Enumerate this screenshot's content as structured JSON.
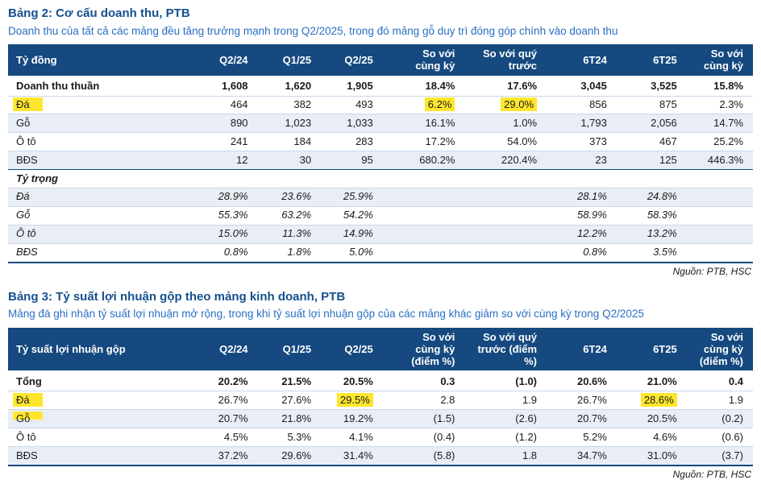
{
  "colors": {
    "header_bg": "#15497f",
    "header_text": "#ffffff",
    "band_row": "#e9eef6",
    "highlight": "#ffe62e",
    "title_blue": "#15508f",
    "subtitle_blue": "#2a6fc2",
    "body_text": "#1a1a1a"
  },
  "tables": [
    {
      "title": "Bảng 2: Cơ cấu doanh thu, PTB",
      "subtitle": "Doanh thu của tất cả các mảng đều tăng trưởng mạnh trong Q2/2025, trong đó mảng gỗ duy trì đóng góp chính vào doanh thu",
      "columns": [
        "Tỷ đồng",
        "Q2/24",
        "Q1/25",
        "Q2/25",
        "So với\ncùng kỳ",
        "So với quý\ntrước",
        "6T24",
        "6T25",
        "So với\ncùng kỳ"
      ],
      "rows": [
        {
          "label": "Doanh thu thuần",
          "bold": true,
          "values": [
            "1,608",
            "1,620",
            "1,905",
            "18.4%",
            "17.6%",
            "3,045",
            "3,525",
            "15.8%"
          ]
        },
        {
          "label": "Đá",
          "label_highlight": "full",
          "highlight_cells": [
            3,
            4
          ],
          "values": [
            "464",
            "382",
            "493",
            "6.2%",
            "29.0%",
            "856",
            "875",
            "2.3%"
          ]
        },
        {
          "label": "Gỗ",
          "shaded": true,
          "values": [
            "890",
            "1,023",
            "1,033",
            "16.1%",
            "1.0%",
            "1,793",
            "2,056",
            "14.7%"
          ]
        },
        {
          "label": "Ô tô",
          "values": [
            "241",
            "184",
            "283",
            "17.2%",
            "54.0%",
            "373",
            "467",
            "25.2%"
          ]
        },
        {
          "label": "BĐS",
          "shaded": true,
          "values": [
            "12",
            "30",
            "95",
            "680.2%",
            "220.4%",
            "23",
            "125",
            "446.3%"
          ]
        },
        {
          "label": "Tỷ trọng",
          "section": true,
          "values": [
            "",
            "",
            "",
            "",
            "",
            "",
            "",
            ""
          ]
        },
        {
          "label": "Đá",
          "italic": true,
          "shaded": true,
          "values": [
            "28.9%",
            "23.6%",
            "25.9%",
            "",
            "",
            "28.1%",
            "24.8%",
            ""
          ]
        },
        {
          "label": "Gỗ",
          "italic": true,
          "values": [
            "55.3%",
            "63.2%",
            "54.2%",
            "",
            "",
            "58.9%",
            "58.3%",
            ""
          ]
        },
        {
          "label": "Ô tô",
          "italic": true,
          "shaded": true,
          "values": [
            "15.0%",
            "11.3%",
            "14.9%",
            "",
            "",
            "12.2%",
            "13.2%",
            ""
          ]
        },
        {
          "label": "BĐS",
          "italic": true,
          "values": [
            "0.8%",
            "1.8%",
            "5.0%",
            "",
            "",
            "0.8%",
            "3.5%",
            ""
          ]
        }
      ],
      "source": "Nguồn: PTB, HSC"
    },
    {
      "title": "Bảng 3: Tỷ suất lợi nhuận gộp theo mảng kinh doanh, PTB",
      "subtitle": "Mảng đá ghi nhận tỷ suất lợi nhuận mở rộng, trong khi tỷ suất lợi nhuận gộp của các mảng khác giảm so với cùng kỳ trong Q2/2025",
      "columns": [
        "Tỷ suất lợi nhuận gộp",
        "Q2/24",
        "Q1/25",
        "Q2/25",
        "So với\ncùng kỳ\n(điểm %)",
        "So với quý\ntrước (điểm\n%)",
        "6T24",
        "6T25",
        "So với\ncùng kỳ\n(điểm %)"
      ],
      "rows": [
        {
          "label": "Tổng",
          "bold": true,
          "values": [
            "20.2%",
            "21.5%",
            "20.5%",
            "0.3",
            "(1.0)",
            "20.6%",
            "21.0%",
            "0.4"
          ]
        },
        {
          "label": "Đá",
          "label_highlight": "full",
          "highlight_cells": [
            2,
            6
          ],
          "values": [
            "26.7%",
            "27.6%",
            "29.5%",
            "2.8",
            "1.9",
            "26.7%",
            "28.6%",
            "1.9"
          ]
        },
        {
          "label": "Gỗ",
          "shaded": true,
          "label_highlight": "top",
          "values": [
            "20.7%",
            "21.8%",
            "19.2%",
            "(1.5)",
            "(2.6)",
            "20.7%",
            "20.5%",
            "(0.2)"
          ]
        },
        {
          "label": "Ô tô",
          "values": [
            "4.5%",
            "5.3%",
            "4.1%",
            "(0.4)",
            "(1.2)",
            "5.2%",
            "4.6%",
            "(0.6)"
          ]
        },
        {
          "label": "BĐS",
          "shaded": true,
          "values": [
            "37.2%",
            "29.6%",
            "31.4%",
            "(5.8)",
            "1.8",
            "34.7%",
            "31.0%",
            "(3.7)"
          ]
        }
      ],
      "source": "Nguồn: PTB, HSC"
    }
  ]
}
